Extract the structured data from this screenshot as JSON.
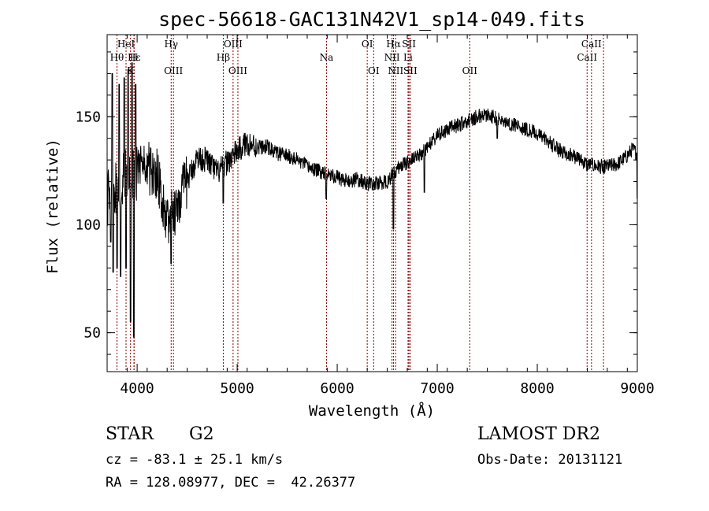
{
  "footer": {
    "class_label": "STAR",
    "subclass": "G2",
    "survey": "LAMOST DR2",
    "cz": "cz = -83.1 ± 25.1 km/s",
    "obs_date": "Obs-Date: 20131121",
    "coords": "RA = 128.08977, DEC =  42.26377"
  },
  "chart_data": {
    "type": "line",
    "title": "spec-56618-GAC131N42V1_sp14-049.fits",
    "xlabel": "Wavelength (Å)",
    "ylabel": "Flux (relative)",
    "xlim": [
      3700,
      9000
    ],
    "ylim": [
      32,
      188
    ],
    "xticks": [
      4000,
      5000,
      6000,
      7000,
      8000,
      9000
    ],
    "yticks": [
      50,
      100,
      150
    ],
    "line_color": "#000000",
    "marker_color": "#8b0000",
    "continuum": [
      [
        3700,
        112
      ],
      [
        3800,
        118
      ],
      [
        3900,
        126
      ],
      [
        4000,
        124
      ],
      [
        4100,
        126
      ],
      [
        4200,
        124
      ],
      [
        4250,
        113
      ],
      [
        4300,
        103
      ],
      [
        4350,
        104
      ],
      [
        4400,
        110
      ],
      [
        4500,
        120
      ],
      [
        4600,
        131
      ],
      [
        4700,
        130
      ],
      [
        4800,
        124
      ],
      [
        4900,
        129
      ],
      [
        5000,
        134
      ],
      [
        5100,
        138
      ],
      [
        5200,
        136
      ],
      [
        5300,
        136
      ],
      [
        5400,
        133
      ],
      [
        5500,
        132
      ],
      [
        5600,
        130
      ],
      [
        5700,
        127
      ],
      [
        5800,
        125
      ],
      [
        5900,
        124
      ],
      [
        6000,
        122
      ],
      [
        6100,
        120
      ],
      [
        6200,
        121
      ],
      [
        6300,
        119
      ],
      [
        6400,
        119
      ],
      [
        6500,
        120
      ],
      [
        6600,
        126
      ],
      [
        6700,
        129
      ],
      [
        6800,
        131
      ],
      [
        6900,
        136
      ],
      [
        7000,
        141
      ],
      [
        7100,
        144
      ],
      [
        7200,
        146
      ],
      [
        7300,
        148
      ],
      [
        7400,
        150
      ],
      [
        7500,
        151
      ],
      [
        7600,
        149
      ],
      [
        7700,
        147
      ],
      [
        7800,
        146
      ],
      [
        7900,
        144
      ],
      [
        8000,
        142
      ],
      [
        8100,
        139
      ],
      [
        8200,
        135
      ],
      [
        8300,
        133
      ],
      [
        8400,
        131
      ],
      [
        8500,
        128
      ],
      [
        8600,
        127
      ],
      [
        8700,
        127
      ],
      [
        8800,
        128
      ],
      [
        8900,
        132
      ],
      [
        8950,
        135
      ],
      [
        9000,
        133
      ]
    ],
    "dips": [
      [
        3735,
        92
      ],
      [
        3760,
        78
      ],
      [
        3800,
        80
      ],
      [
        3835,
        76
      ],
      [
        3890,
        80
      ],
      [
        3934,
        55
      ],
      [
        3968,
        48
      ],
      [
        4340,
        82
      ],
      [
        4860,
        110
      ],
      [
        5890,
        112
      ],
      [
        6563,
        98
      ],
      [
        6870,
        115
      ],
      [
        7600,
        140
      ],
      [
        8498,
        125
      ],
      [
        8542,
        128
      ],
      [
        8662,
        124
      ],
      [
        9000,
        112
      ]
    ],
    "spikes": [
      [
        3750,
        170
      ],
      [
        3820,
        165
      ],
      [
        3870,
        168
      ],
      [
        3910,
        172
      ],
      [
        3950,
        175
      ],
      [
        3985,
        165
      ]
    ],
    "line_markers": [
      {
        "label": "Hε",
        "wl": 3970,
        "row": 1
      },
      {
        "label": "Hθ",
        "wl": 3798,
        "row": 2
      },
      {
        "label": "HeI",
        "wl": 3889,
        "row": 0
      },
      {
        "label": "H",
        "wl": 3968,
        "row": 2
      },
      {
        "label": "K",
        "wl": 3934,
        "row": 3
      },
      {
        "label": "Hγ",
        "wl": 4340,
        "row": 0
      },
      {
        "label": "OIII",
        "wl": 4363,
        "row": 3
      },
      {
        "label": "OIII",
        "wl": 4959,
        "row": 0
      },
      {
        "label": "Hβ",
        "wl": 4861,
        "row": 2
      },
      {
        "label": "OIII",
        "wl": 5007,
        "row": 3
      },
      {
        "label": "Na",
        "wl": 5893,
        "row": 2
      },
      {
        "label": "OI",
        "wl": 6300,
        "row": 0
      },
      {
        "label": "OI",
        "wl": 6364,
        "row": 3
      },
      {
        "label": "Hα",
        "wl": 6563,
        "row": 0
      },
      {
        "label": "NII",
        "wl": 6548,
        "row": 2
      },
      {
        "label": "NII",
        "wl": 6584,
        "row": 3
      },
      {
        "label": "SII",
        "wl": 6717,
        "row": 0
      },
      {
        "label": "Li",
        "wl": 6708,
        "row": 2
      },
      {
        "label": "SII",
        "wl": 6731,
        "row": 3
      },
      {
        "label": "OII",
        "wl": 7325,
        "row": 3
      },
      {
        "label": "CaII",
        "wl": 8542,
        "row": 0
      },
      {
        "label": "CaII",
        "wl": 8498,
        "row": 2
      }
    ],
    "marker_lines_wl": [
      3798,
      3889,
      3934,
      3968,
      3970,
      4340,
      4363,
      4861,
      4959,
      5007,
      5893,
      6300,
      6364,
      6548,
      6563,
      6584,
      6708,
      6717,
      6731,
      7325,
      8498,
      8542,
      8662
    ]
  }
}
